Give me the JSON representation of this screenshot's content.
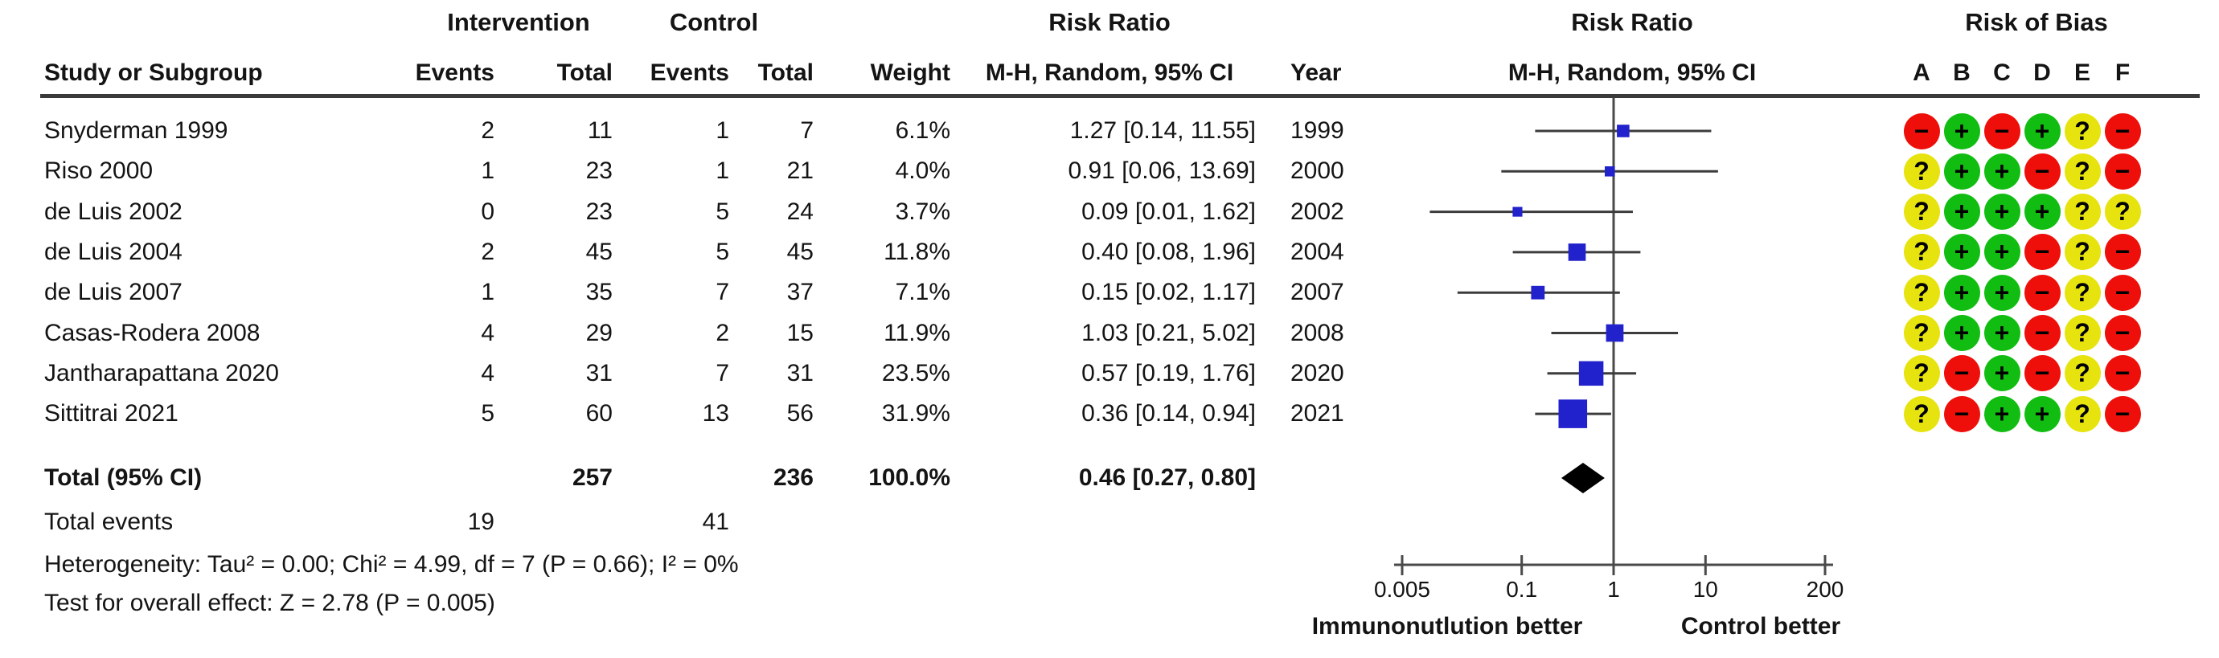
{
  "header": {
    "groups": {
      "intervention": "Intervention",
      "control": "Control",
      "risk_ratio_text_col": "Risk Ratio",
      "risk_ratio_plot_col": "Risk Ratio",
      "risk_of_bias": "Risk of Bias"
    },
    "columns": {
      "study": "Study or Subgroup",
      "events_intervention": "Events",
      "total_intervention": "Total",
      "events_control": "Events",
      "total_control": "Total",
      "weight": "Weight",
      "mh_random_ci_text": "M-H, Random, 95% CI",
      "year": "Year",
      "mh_random_ci_plot": "M-H, Random, 95% CI"
    },
    "rob_letters": [
      "A",
      "B",
      "C",
      "D",
      "E",
      "F"
    ]
  },
  "footer": {
    "heterogeneity": "Heterogeneity: Tau² = 0.00; Chi² = 4.99, df = 7 (P = 0.66); I² = 0%",
    "overall_effect": "Test for overall effect: Z = 2.78 (P = 0.005)"
  },
  "colors": {
    "square": "#2222cc",
    "diamond": "#000000",
    "ci_line": "#3c3c3c",
    "axis": "#4a4a4a",
    "rule": "#3a3a3a",
    "rob_plus": "#12bd12",
    "rob_minus": "#ee0f0a",
    "rob_question": "#e7e30e"
  },
  "chart_data": {
    "type": "scatter",
    "variant": "forest-plot",
    "effect_measure": "Risk Ratio",
    "method": "M-H, Random, 95% CI",
    "x_scale": "log",
    "xlim": [
      0.005,
      200
    ],
    "x_ticks": [
      0.005,
      0.1,
      1,
      10,
      200
    ],
    "x_tick_labels": [
      "0.005",
      "0.1",
      "1",
      "10",
      "200"
    ],
    "axis_label_left": "Immunonutlution better",
    "axis_label_right": "Control better",
    "studies": [
      {
        "name": "Snyderman 1999",
        "int_events": "2",
        "int_total": "11",
        "ctrl_events": "1",
        "ctrl_total": "7",
        "weight": "6.1%",
        "weight_value": 6.1,
        "rr_text": "1.27 [0.14, 11.55]",
        "year": "1999",
        "rr": 1.27,
        "ci": [
          0.14,
          11.55
        ],
        "rob": [
          "-",
          "+",
          "-",
          "+",
          "?",
          "-"
        ]
      },
      {
        "name": "Riso 2000",
        "int_events": "1",
        "int_total": "23",
        "ctrl_events": "1",
        "ctrl_total": "21",
        "weight": "4.0%",
        "weight_value": 4.0,
        "rr_text": "0.91 [0.06, 13.69]",
        "year": "2000",
        "rr": 0.91,
        "ci": [
          0.06,
          13.69
        ],
        "rob": [
          "?",
          "+",
          "+",
          "-",
          "?",
          "-"
        ]
      },
      {
        "name": "de Luis 2002",
        "int_events": "0",
        "int_total": "23",
        "ctrl_events": "5",
        "ctrl_total": "24",
        "weight": "3.7%",
        "weight_value": 3.7,
        "rr_text": "0.09 [0.01, 1.62]",
        "year": "2002",
        "rr": 0.09,
        "ci": [
          0.01,
          1.62
        ],
        "rob": [
          "?",
          "+",
          "+",
          "+",
          "?",
          "?"
        ]
      },
      {
        "name": "de Luis 2004",
        "int_events": "2",
        "int_total": "45",
        "ctrl_events": "5",
        "ctrl_total": "45",
        "weight": "11.8%",
        "weight_value": 11.8,
        "rr_text": "0.40 [0.08, 1.96]",
        "year": "2004",
        "rr": 0.4,
        "ci": [
          0.08,
          1.96
        ],
        "rob": [
          "?",
          "+",
          "+",
          "-",
          "?",
          "-"
        ]
      },
      {
        "name": "de Luis 2007",
        "int_events": "1",
        "int_total": "35",
        "ctrl_events": "7",
        "ctrl_total": "37",
        "weight": "7.1%",
        "weight_value": 7.1,
        "rr_text": "0.15 [0.02, 1.17]",
        "year": "2007",
        "rr": 0.15,
        "ci": [
          0.02,
          1.17
        ],
        "rob": [
          "?",
          "+",
          "+",
          "-",
          "?",
          "-"
        ]
      },
      {
        "name": "Casas-Rodera 2008",
        "int_events": "4",
        "int_total": "29",
        "ctrl_events": "2",
        "ctrl_total": "15",
        "weight": "11.9%",
        "weight_value": 11.9,
        "rr_text": "1.03 [0.21, 5.02]",
        "year": "2008",
        "rr": 1.03,
        "ci": [
          0.21,
          5.02
        ],
        "rob": [
          "?",
          "+",
          "+",
          "-",
          "?",
          "-"
        ]
      },
      {
        "name": "Jantharapattana 2020",
        "int_events": "4",
        "int_total": "31",
        "ctrl_events": "7",
        "ctrl_total": "31",
        "weight": "23.5%",
        "weight_value": 23.5,
        "rr_text": "0.57 [0.19, 1.76]",
        "year": "2020",
        "rr": 0.57,
        "ci": [
          0.19,
          1.76
        ],
        "rob": [
          "?",
          "-",
          "+",
          "-",
          "?",
          "-"
        ]
      },
      {
        "name": "Sittitrai 2021",
        "int_events": "5",
        "int_total": "60",
        "ctrl_events": "13",
        "ctrl_total": "56",
        "weight": "31.9%",
        "weight_value": 31.9,
        "rr_text": "0.36 [0.14, 0.94]",
        "year": "2021",
        "rr": 0.36,
        "ci": [
          0.14,
          0.94
        ],
        "rob": [
          "?",
          "-",
          "+",
          "+",
          "?",
          "-"
        ]
      }
    ],
    "total": {
      "label": "Total (95% CI)",
      "int_total": "257",
      "ctrl_total": "236",
      "weight": "100.0%",
      "rr_text": "0.46 [0.27, 0.80]",
      "rr": 0.46,
      "ci": [
        0.27,
        0.8
      ]
    },
    "total_events": {
      "label": "Total events",
      "intervention": "19",
      "control": "41"
    }
  }
}
